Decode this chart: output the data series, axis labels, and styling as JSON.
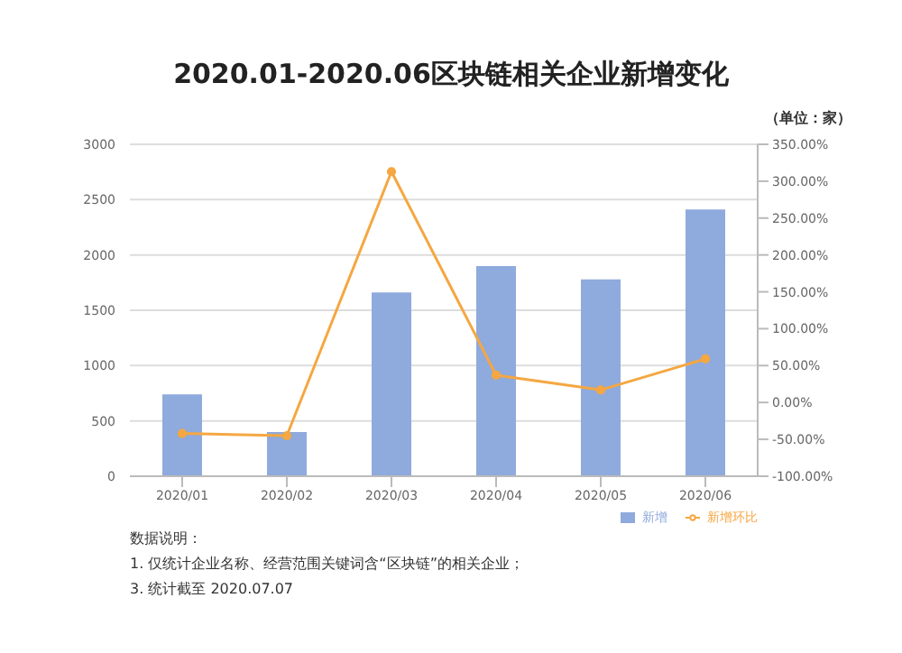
{
  "chart_data": {
    "type": "bar",
    "title": "2020.01-2020.06区块链相关企业新增变化",
    "subtitle": "（单位：家）",
    "categories": [
      "2020/01",
      "2020/02",
      "2020/03",
      "2020/04",
      "2020/05",
      "2020/06"
    ],
    "series": [
      {
        "name": "新增",
        "color": "#8faadc",
        "values": [
          740,
          400,
          1660,
          1900,
          1780,
          2410
        ]
      },
      {
        "name": "新增环比",
        "type": "line",
        "axis": "y2",
        "color": "#f5a742",
        "values": [
          -42,
          -45,
          313,
          37,
          17,
          59
        ]
      }
    ],
    "ylim": [
      0,
      3000
    ],
    "yticks": [
      0,
      500,
      1000,
      1500,
      2000,
      2500,
      3000
    ],
    "y2lim": [
      -100,
      350
    ],
    "y2ticks": [
      {
        "value": -100,
        "label": "-100.00%"
      },
      {
        "value": -50,
        "label": "-50.00%"
      },
      {
        "value": 0,
        "label": "0.00%"
      },
      {
        "value": 50,
        "label": "50.00%"
      },
      {
        "value": 100,
        "label": "100.00%"
      },
      {
        "value": 150,
        "label": "150.00%"
      },
      {
        "value": 200,
        "label": "200.00%"
      },
      {
        "value": 250,
        "label": "250.00%"
      },
      {
        "value": 300,
        "label": "300.00%"
      },
      {
        "value": 350,
        "label": "350.00%"
      }
    ],
    "grid": "y",
    "legend": "bottom right",
    "marker": "circle",
    "line_style": "solid",
    "annotations": [
      "数据说明：",
      "1. 仅统计企业名称、经营范围关键词含“区块链”的相关企业；",
      "3. 统计截至 2020.07.07"
    ]
  }
}
